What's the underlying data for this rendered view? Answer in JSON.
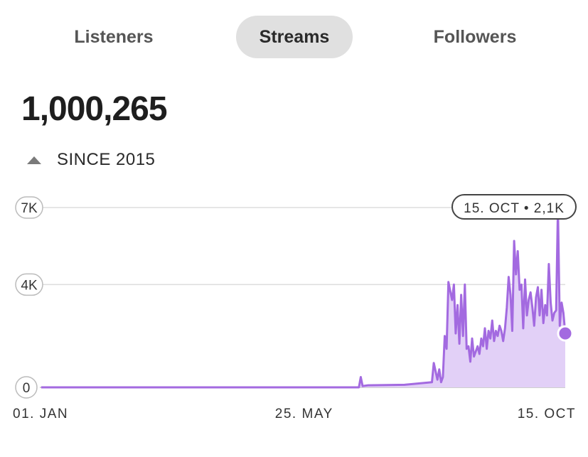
{
  "tabs": [
    {
      "label": "Listeners",
      "active": false
    },
    {
      "label": "Streams",
      "active": true
    },
    {
      "label": "Followers",
      "active": false
    }
  ],
  "summary": {
    "total": "1,000,265",
    "trend_icon": "triangle-up-icon",
    "since": "SINCE 2015"
  },
  "tooltip": {
    "label": "15. OCT • 2,1K"
  },
  "colors": {
    "series": "#a36ae0",
    "fill": "#e2d0f7",
    "grid": "#dddddd",
    "axis": "#bbbbbb"
  },
  "chart_data": {
    "type": "area",
    "title": "",
    "xlabel": "",
    "ylabel": "",
    "ylim": [
      0,
      7000
    ],
    "yticks": [
      {
        "value": 0,
        "label": "0"
      },
      {
        "value": 4000,
        "label": "4K"
      },
      {
        "value": 7000,
        "label": "7K"
      }
    ],
    "xticks": [
      {
        "day": 1,
        "label": "01. JAN"
      },
      {
        "day": 145,
        "label": "25. MAY"
      },
      {
        "day": 288,
        "label": "15. OCT"
      }
    ],
    "grid": true,
    "series": [
      {
        "x": [
          1,
          175,
          176,
          177,
          178,
          180,
          200,
          215,
          216,
          218,
          219,
          220,
          221,
          222,
          223,
          224,
          226,
          227,
          228,
          229,
          230,
          231,
          232,
          233,
          234,
          235,
          236,
          237,
          238,
          239,
          240,
          241,
          242,
          243,
          244,
          245,
          246,
          247,
          248,
          249,
          250,
          251,
          252,
          253,
          254,
          255,
          256,
          257,
          258,
          259,
          260,
          261,
          262,
          263,
          264,
          265,
          266,
          267,
          268,
          269,
          270,
          271,
          272,
          273,
          274,
          275,
          276,
          277,
          278,
          279,
          280,
          281,
          282,
          283,
          284,
          285,
          286,
          287,
          288
        ],
        "y": [
          0,
          0,
          400,
          50,
          60,
          80,
          100,
          200,
          950,
          300,
          700,
          200,
          400,
          2000,
          1500,
          4100,
          3400,
          4000,
          2100,
          3200,
          1700,
          3600,
          2000,
          4000,
          1500,
          1600,
          1000,
          1900,
          1200,
          1400,
          1600,
          1300,
          1900,
          1600,
          2300,
          1500,
          2200,
          1900,
          2600,
          1800,
          2200,
          2000,
          2400,
          2200,
          1800,
          2300,
          3100,
          4300,
          3600,
          2200,
          5700,
          4400,
          5300,
          3800,
          4000,
          2300,
          4200,
          2800,
          3400,
          3700,
          3100,
          2400,
          3500,
          3900,
          2800,
          3800,
          2500,
          3200,
          2800,
          4800,
          3300,
          2600,
          2900,
          3000,
          7000,
          2400,
          3300,
          2900,
          2100
        ]
      }
    ]
  }
}
